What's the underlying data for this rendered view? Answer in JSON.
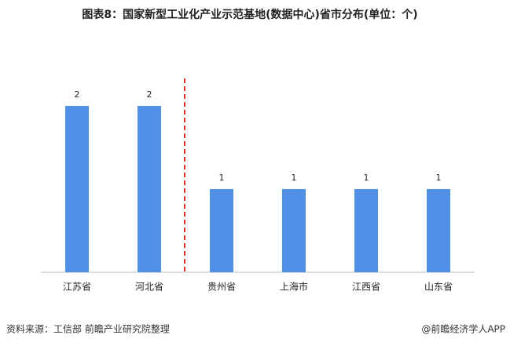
{
  "chart_data": {
    "type": "bar",
    "title": "图表8：国家新型工业化产业示范基地(数据中心)省市分布(单位：个)",
    "categories": [
      "江苏省",
      "河北省",
      "贵州省",
      "上海市",
      "江西省",
      "山东省"
    ],
    "values": [
      2,
      2,
      1,
      1,
      1,
      1
    ],
    "color": "#4f8fe6",
    "ylim": [
      0,
      2
    ],
    "source": "资料来源：工信部 前瞻产业研究院整理",
    "credit": "@前瞻经济学人APP"
  }
}
